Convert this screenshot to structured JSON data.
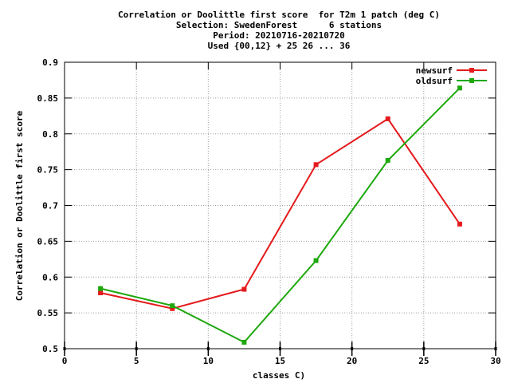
{
  "chart_data": {
    "type": "line",
    "title_lines": [
      "Correlation or Doolittle first score  for T2m 1 patch (deg C)",
      "Selection: SwedenForest      6 stations",
      "Period: 20210716-20210720",
      "Used {00,12} + 25 26 ... 36"
    ],
    "xlabel": "classes C)",
    "ylabel": "Correlation or Doolittle first score",
    "xlim": [
      0,
      30
    ],
    "ylim": [
      0.5,
      0.9
    ],
    "x_ticks": [
      "0",
      "5",
      "10",
      "15",
      "20",
      "25",
      "30"
    ],
    "y_ticks": [
      "0.5",
      "0.55",
      "0.6",
      "0.65",
      "0.7",
      "0.75",
      "0.8",
      "0.85",
      "0.9"
    ],
    "grid": true,
    "legend_position": "top-right",
    "x": [
      2.5,
      7.5,
      12.5,
      17.5,
      22.5,
      27.5
    ],
    "series": [
      {
        "name": "newsurf",
        "color": "#e41a1c",
        "values": [
          0.578,
          0.556,
          0.583,
          0.757,
          0.821,
          0.674
        ]
      },
      {
        "name": "oldsurf",
        "color": "#1ea80e",
        "values": [
          0.584,
          0.56,
          0.509,
          0.623,
          0.763,
          0.864
        ]
      }
    ]
  }
}
